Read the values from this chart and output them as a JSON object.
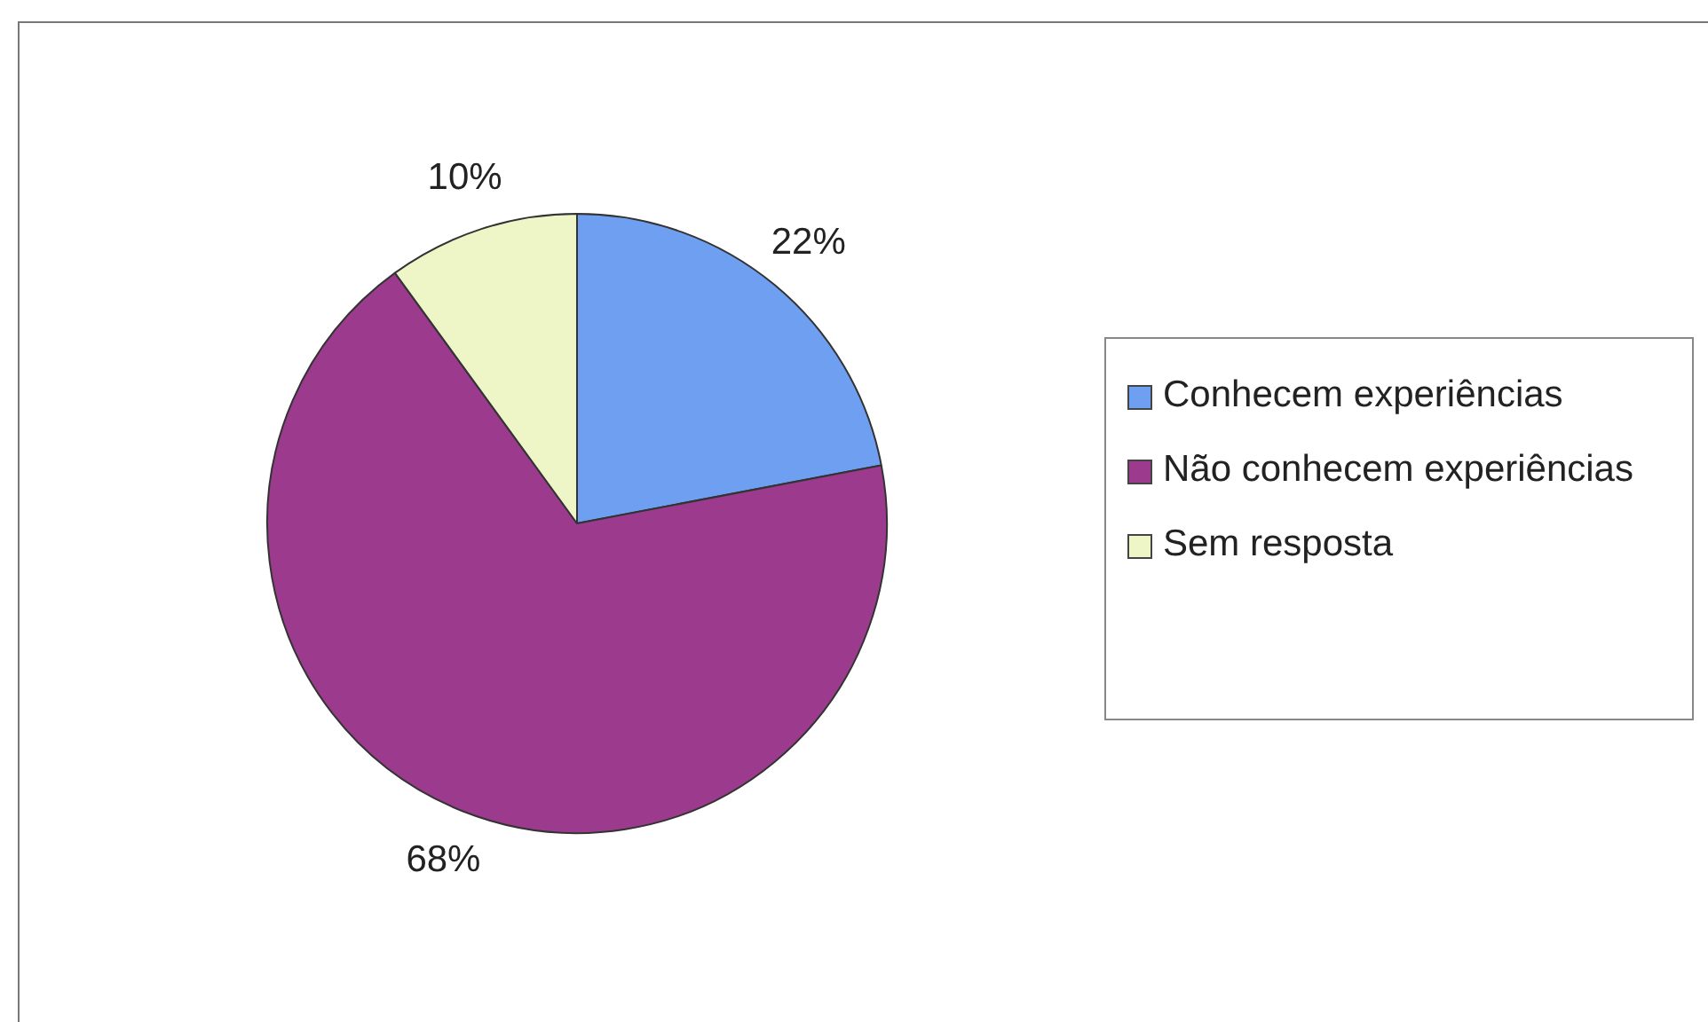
{
  "chart_data": {
    "type": "pie",
    "categories": [
      "Conhecem experiências",
      "Não conhecem experiências",
      "Sem resposta"
    ],
    "values": [
      22,
      68,
      10
    ],
    "colors": [
      "#6f9ff0",
      "#9c3b8e",
      "#eef5c6"
    ],
    "value_labels": [
      "22%",
      "68%",
      "10%"
    ],
    "legend": "right"
  }
}
